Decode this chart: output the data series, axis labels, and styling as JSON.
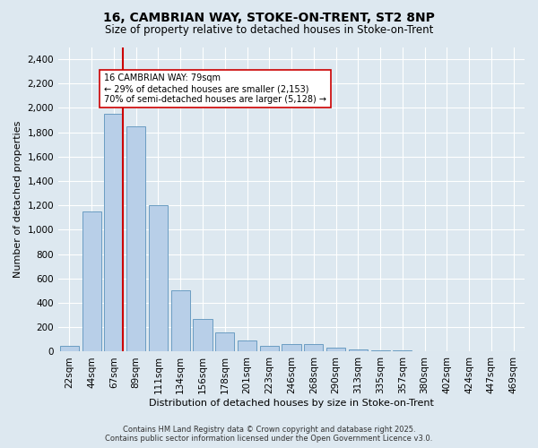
{
  "title_line1": "16, CAMBRIAN WAY, STOKE-ON-TRENT, ST2 8NP",
  "title_line2": "Size of property relative to detached houses in Stoke-on-Trent",
  "xlabel": "Distribution of detached houses by size in Stoke-on-Trent",
  "ylabel": "Number of detached properties",
  "categories": [
    "22sqm",
    "44sqm",
    "67sqm",
    "89sqm",
    "111sqm",
    "134sqm",
    "156sqm",
    "178sqm",
    "201sqm",
    "223sqm",
    "246sqm",
    "268sqm",
    "290sqm",
    "313sqm",
    "335sqm",
    "357sqm",
    "380sqm",
    "402sqm",
    "424sqm",
    "447sqm",
    "469sqm"
  ],
  "values": [
    50,
    1150,
    1950,
    1850,
    1200,
    500,
    270,
    160,
    90,
    50,
    60,
    60,
    30,
    20,
    10,
    8,
    5,
    5,
    5,
    5,
    5
  ],
  "bar_color": "#b8cfe8",
  "bar_edge_color": "#6b9dc2",
  "vline_color": "#cc0000",
  "vline_x_index": 2.42,
  "annotation_text": "16 CAMBRIAN WAY: 79sqm\n← 29% of detached houses are smaller (2,153)\n70% of semi-detached houses are larger (5,128) →",
  "annotation_box_facecolor": "#ffffff",
  "annotation_box_edgecolor": "#cc0000",
  "ylim": [
    0,
    2500
  ],
  "yticks": [
    0,
    200,
    400,
    600,
    800,
    1000,
    1200,
    1400,
    1600,
    1800,
    2000,
    2200,
    2400
  ],
  "bg_color": "#dde8f0",
  "grid_color": "#ffffff",
  "footer_line1": "Contains HM Land Registry data © Crown copyright and database right 2025.",
  "footer_line2": "Contains public sector information licensed under the Open Government Licence v3.0."
}
